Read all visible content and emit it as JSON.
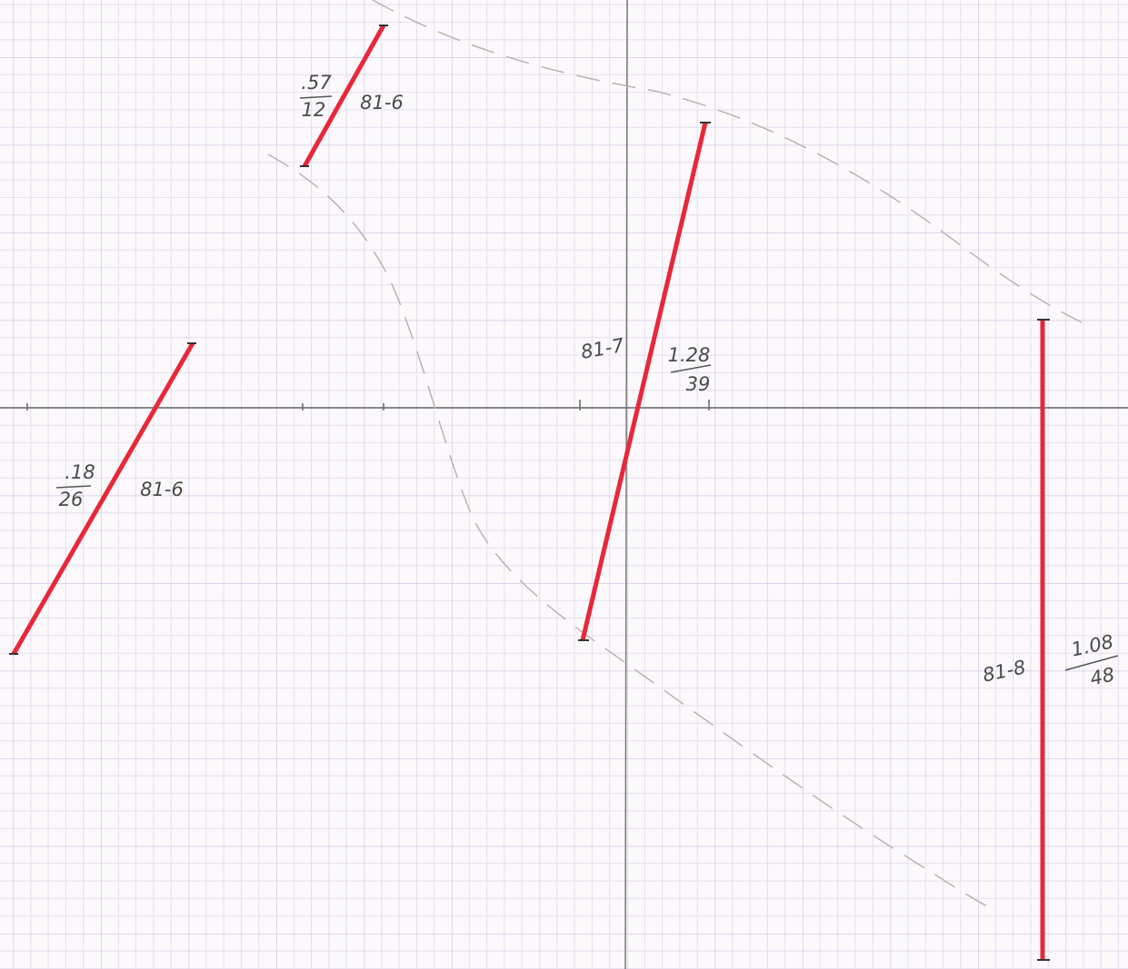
{
  "segments": [
    {
      "label": "81-6",
      "numerator": ".57",
      "denominator": "12"
    },
    {
      "label": "81-6",
      "numerator": ".18",
      "denominator": "26"
    },
    {
      "label": "81-7",
      "numerator": "1.28",
      "denominator": "39"
    },
    {
      "label": "81-8",
      "numerator": "1.08",
      "denominator": "48"
    }
  ]
}
